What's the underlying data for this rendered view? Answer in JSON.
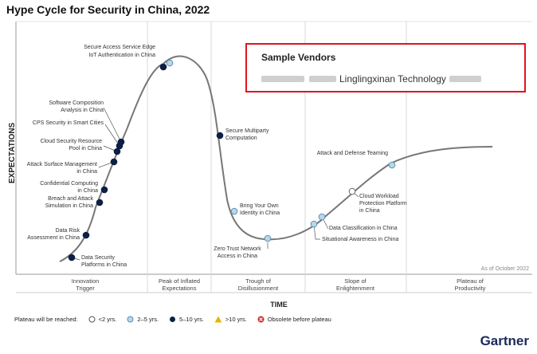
{
  "title": "Hype Cycle for Security in China, 2022",
  "vendors": {
    "heading": "Sample Vendors",
    "name": "Linglingxinan Technology"
  },
  "footnote": "As of October 2022",
  "brand": "Gartner",
  "legend": {
    "label": "Plateau will be reached:",
    "items": [
      {
        "label": "<2 yrs.",
        "symbol": "open-circle"
      },
      {
        "label": "2–5 yrs.",
        "symbol": "light-blue-circle"
      },
      {
        "label": "5–10 yrs.",
        "symbol": "dark-navy-circle"
      },
      {
        "label": ">10 yrs.",
        "symbol": "yellow-triangle"
      },
      {
        "label": "Obsolete before plateau",
        "symbol": "red-x-circle"
      }
    ]
  },
  "colors": {
    "curve": "#777777",
    "dark_dot": "#0d1f44",
    "light_dot": "#b7d7ec",
    "open_dot": "#ffffff",
    "highlight_border": "#e0141e",
    "brand": "#1a2a5b"
  },
  "chart_data": {
    "type": "hype-cycle",
    "title": "Hype Cycle for Security in China, 2022",
    "ylabel": "EXPECTATIONS",
    "xlabel": "TIME",
    "phases": [
      {
        "name": "Innovation Trigger"
      },
      {
        "name": "Peak of Inflated Expectations"
      },
      {
        "name": "Trough of Disillusionment"
      },
      {
        "name": "Slope of Enlightenment"
      },
      {
        "name": "Plateau of Productivity"
      }
    ],
    "technologies": [
      {
        "name": "Secure Access Service Edge",
        "phase": "Peak of Inflated Expectations",
        "plateau": "2–5 yrs."
      },
      {
        "name": "IoT Authentication in China",
        "phase": "Peak of Inflated Expectations",
        "plateau": "5–10 yrs."
      },
      {
        "name": "Software Composition Analysis in China",
        "phase": "Innovation Trigger",
        "plateau": "5–10 yrs."
      },
      {
        "name": "CPS Security in Smart Cities",
        "phase": "Innovation Trigger",
        "plateau": "5–10 yrs."
      },
      {
        "name": "Cloud Security Resource Pool in China",
        "phase": "Innovation Trigger",
        "plateau": "5–10 yrs."
      },
      {
        "name": "Attack Surface Management in China",
        "phase": "Innovation Trigger",
        "plateau": "5–10 yrs."
      },
      {
        "name": "Confidential Computing in China",
        "phase": "Innovation Trigger",
        "plateau": "5–10 yrs."
      },
      {
        "name": "Breach and Attack Simulation in China",
        "phase": "Innovation Trigger",
        "plateau": "5–10 yrs."
      },
      {
        "name": "Data Risk Assessment in China",
        "phase": "Innovation Trigger",
        "plateau": "5–10 yrs."
      },
      {
        "name": "Data Security Platforms in China",
        "phase": "Innovation Trigger",
        "plateau": "5–10 yrs."
      },
      {
        "name": "Secure Multiparty Computation",
        "phase": "Trough of Disillusionment",
        "plateau": "5–10 yrs."
      },
      {
        "name": "Bring Your Own Identity in China",
        "phase": "Trough of Disillusionment",
        "plateau": "2–5 yrs."
      },
      {
        "name": "Zero Trust Network Access in China",
        "phase": "Trough of Disillusionment",
        "plateau": "2–5 yrs."
      },
      {
        "name": "Attack and Defense Teaming",
        "phase": "Slope of Enlightenment",
        "plateau": "2–5 yrs."
      },
      {
        "name": "Cloud Workload Protection Platform in China",
        "phase": "Slope of Enlightenment",
        "plateau": "<2 yrs."
      },
      {
        "name": "Data Classification in China",
        "phase": "Slope of Enlightenment",
        "plateau": "2–5 yrs."
      },
      {
        "name": "Situational Awareness in China",
        "phase": "Slope of Enlightenment",
        "plateau": "2–5 yrs."
      }
    ]
  }
}
